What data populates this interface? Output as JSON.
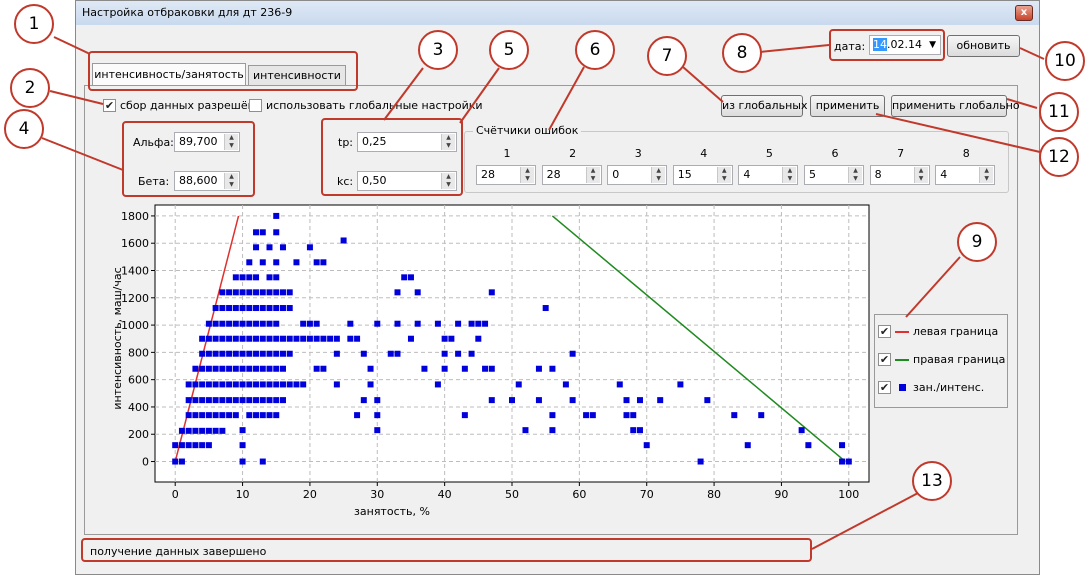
{
  "window": {
    "title": "Настройка отбраковки для дт 236-9",
    "close_glyph": "x"
  },
  "tabs": [
    {
      "label": "интенсивность/занятость",
      "active": true
    },
    {
      "label": "интенсивности",
      "active": false
    }
  ],
  "options": {
    "collect_label": "сбор данных разрешён",
    "collect_checked": true,
    "global_label": "использовать глобальные настройки",
    "global_checked": false
  },
  "params": {
    "alpha_label": "Альфа:",
    "alpha_value": "89,700",
    "beta_label": "Бета:",
    "beta_value": "88,600",
    "tp_label": "tp:",
    "tp_value": "0,25",
    "kc_label": "kc:",
    "kc_value": "0,50"
  },
  "date": {
    "label": "дата:",
    "value_selected": "14",
    "value_rest": ".02.14"
  },
  "buttons": {
    "refresh": "обновить",
    "from_global": "из глобальных",
    "apply": "применить",
    "apply_global": "применить глобально"
  },
  "counters": {
    "title": "Счётчики ошибок",
    "items": [
      {
        "head": "1",
        "value": "28"
      },
      {
        "head": "2",
        "value": "28"
      },
      {
        "head": "3",
        "value": "0"
      },
      {
        "head": "4",
        "value": "15"
      },
      {
        "head": "5",
        "value": "4"
      },
      {
        "head": "6",
        "value": "5"
      },
      {
        "head": "7",
        "value": "8"
      },
      {
        "head": "8",
        "value": "4"
      }
    ]
  },
  "legend": {
    "items": [
      {
        "label": "левая граница",
        "color": "#e03030",
        "checked": true
      },
      {
        "label": "правая граница",
        "color": "#1f8a1f",
        "checked": true
      },
      {
        "label": "зан./интенс.",
        "color": "#0000dd",
        "checked": true
      }
    ]
  },
  "status": "получение данных завершено",
  "annotations": [
    "1",
    "2",
    "3",
    "4",
    "5",
    "6",
    "7",
    "8",
    "9",
    "10",
    "11",
    "12",
    "13"
  ],
  "colors": {
    "annotation": "#c0392b",
    "points": "#0000dd",
    "left_line": "#e03030",
    "right_line": "#1f8a1f"
  },
  "chart_data": {
    "type": "scatter",
    "xlabel": "занятость, %",
    "ylabel": "интенсивность, маш/час",
    "xlim": [
      -3,
      103
    ],
    "ylim": [
      -150,
      1880
    ],
    "grid": true,
    "x_ticks": [
      0,
      10,
      20,
      30,
      40,
      50,
      60,
      70,
      80,
      90,
      100
    ],
    "y_ticks": [
      0,
      200,
      400,
      600,
      800,
      1000,
      1200,
      1400,
      1600,
      1800
    ],
    "series": [
      {
        "name": "левая граница",
        "kind": "line",
        "color": "#e03030",
        "x": [
          0,
          9.4
        ],
        "y": [
          0,
          1800
        ]
      },
      {
        "name": "правая граница",
        "kind": "line",
        "color": "#1f8a1f",
        "x": [
          56,
          99.5
        ],
        "y": [
          1800,
          0
        ]
      },
      {
        "name": "зан./интенс.",
        "kind": "points",
        "color": "#0000dd",
        "points": [
          [
            0,
            0
          ],
          [
            1,
            0
          ],
          [
            0,
            120
          ],
          [
            1,
            120
          ],
          [
            2,
            120
          ],
          [
            3,
            120
          ],
          [
            4,
            120
          ],
          [
            5,
            120
          ],
          [
            1,
            225
          ],
          [
            2,
            225
          ],
          [
            3,
            225
          ],
          [
            4,
            225
          ],
          [
            5,
            225
          ],
          [
            6,
            225
          ],
          [
            7,
            225
          ],
          [
            2,
            340
          ],
          [
            3,
            340
          ],
          [
            4,
            340
          ],
          [
            5,
            340
          ],
          [
            6,
            340
          ],
          [
            7,
            340
          ],
          [
            8,
            340
          ],
          [
            9,
            340
          ],
          [
            2,
            450
          ],
          [
            3,
            450
          ],
          [
            4,
            450
          ],
          [
            5,
            450
          ],
          [
            6,
            450
          ],
          [
            7,
            450
          ],
          [
            8,
            450
          ],
          [
            9,
            450
          ],
          [
            10,
            450
          ],
          [
            2,
            565
          ],
          [
            3,
            565
          ],
          [
            4,
            565
          ],
          [
            5,
            565
          ],
          [
            6,
            565
          ],
          [
            7,
            565
          ],
          [
            8,
            565
          ],
          [
            9,
            565
          ],
          [
            10,
            565
          ],
          [
            3,
            680
          ],
          [
            4,
            680
          ],
          [
            5,
            680
          ],
          [
            6,
            680
          ],
          [
            7,
            680
          ],
          [
            8,
            680
          ],
          [
            9,
            680
          ],
          [
            10,
            680
          ],
          [
            4,
            790
          ],
          [
            5,
            790
          ],
          [
            6,
            790
          ],
          [
            7,
            790
          ],
          [
            8,
            790
          ],
          [
            9,
            790
          ],
          [
            10,
            790
          ],
          [
            4,
            900
          ],
          [
            5,
            900
          ],
          [
            6,
            900
          ],
          [
            7,
            900
          ],
          [
            8,
            900
          ],
          [
            9,
            900
          ],
          [
            10,
            900
          ],
          [
            5,
            1010
          ],
          [
            6,
            1010
          ],
          [
            7,
            1010
          ],
          [
            8,
            1010
          ],
          [
            9,
            1010
          ],
          [
            10,
            1010
          ],
          [
            6,
            1125
          ],
          [
            7,
            1125
          ],
          [
            8,
            1125
          ],
          [
            9,
            1125
          ],
          [
            10,
            1125
          ],
          [
            7,
            1240
          ],
          [
            8,
            1240
          ],
          [
            9,
            1240
          ],
          [
            10,
            1240
          ],
          [
            9,
            1350
          ],
          [
            10,
            1350
          ],
          [
            11,
            340
          ],
          [
            12,
            340
          ],
          [
            13,
            340
          ],
          [
            14,
            340
          ],
          [
            15,
            340
          ],
          [
            11,
            450
          ],
          [
            12,
            450
          ],
          [
            13,
            450
          ],
          [
            14,
            450
          ],
          [
            15,
            450
          ],
          [
            16,
            450
          ],
          [
            11,
            565
          ],
          [
            12,
            565
          ],
          [
            13,
            565
          ],
          [
            14,
            565
          ],
          [
            15,
            565
          ],
          [
            16,
            565
          ],
          [
            17,
            565
          ],
          [
            18,
            565
          ],
          [
            19,
            565
          ],
          [
            11,
            680
          ],
          [
            12,
            680
          ],
          [
            13,
            680
          ],
          [
            14,
            680
          ],
          [
            15,
            680
          ],
          [
            16,
            680
          ],
          [
            11,
            790
          ],
          [
            12,
            790
          ],
          [
            13,
            790
          ],
          [
            14,
            790
          ],
          [
            15,
            790
          ],
          [
            16,
            790
          ],
          [
            17,
            790
          ],
          [
            11,
            900
          ],
          [
            12,
            900
          ],
          [
            13,
            900
          ],
          [
            14,
            900
          ],
          [
            15,
            900
          ],
          [
            16,
            900
          ],
          [
            17,
            900
          ],
          [
            18,
            900
          ],
          [
            19,
            900
          ],
          [
            20,
            900
          ],
          [
            21,
            900
          ],
          [
            22,
            900
          ],
          [
            23,
            900
          ],
          [
            24,
            900
          ],
          [
            11,
            1010
          ],
          [
            12,
            1010
          ],
          [
            13,
            1010
          ],
          [
            14,
            1010
          ],
          [
            15,
            1010
          ],
          [
            19,
            1010
          ],
          [
            20,
            1010
          ],
          [
            21,
            1010
          ],
          [
            11,
            1125
          ],
          [
            12,
            1125
          ],
          [
            13,
            1125
          ],
          [
            14,
            1125
          ],
          [
            15,
            1125
          ],
          [
            16,
            1125
          ],
          [
            17,
            1125
          ],
          [
            11,
            1240
          ],
          [
            12,
            1240
          ],
          [
            13,
            1240
          ],
          [
            14,
            1240
          ],
          [
            15,
            1240
          ],
          [
            16,
            1240
          ],
          [
            17,
            1240
          ],
          [
            11,
            1350
          ],
          [
            12,
            1350
          ],
          [
            14,
            1350
          ],
          [
            15,
            1350
          ],
          [
            11,
            1460
          ],
          [
            13,
            1460
          ],
          [
            15,
            1460
          ],
          [
            18,
            1460
          ],
          [
            21,
            1460
          ],
          [
            22,
            1460
          ],
          [
            12,
            1570
          ],
          [
            14,
            1570
          ],
          [
            16,
            1570
          ],
          [
            20,
            1570
          ],
          [
            25,
            1620
          ],
          [
            12,
            1680
          ],
          [
            13,
            1680
          ],
          [
            15,
            1680
          ],
          [
            15,
            1800
          ],
          [
            10,
            0
          ],
          [
            13,
            0
          ],
          [
            10,
            230
          ],
          [
            10,
            120
          ],
          [
            21,
            680
          ],
          [
            24,
            790
          ],
          [
            24,
            565
          ],
          [
            22,
            680
          ],
          [
            26,
            900
          ],
          [
            27,
            900
          ],
          [
            28,
            790
          ],
          [
            29,
            680
          ],
          [
            29,
            565
          ],
          [
            30,
            450
          ],
          [
            28,
            450
          ],
          [
            27,
            340
          ],
          [
            30,
            340
          ],
          [
            30,
            230
          ],
          [
            26,
            1010
          ],
          [
            30,
            1010
          ],
          [
            33,
            1010
          ],
          [
            36,
            1010
          ],
          [
            39,
            1010
          ],
          [
            42,
            1010
          ],
          [
            44,
            1010
          ],
          [
            45,
            1010
          ],
          [
            46,
            1010
          ],
          [
            32,
            790
          ],
          [
            33,
            790
          ],
          [
            35,
            900
          ],
          [
            37,
            680
          ],
          [
            39,
            565
          ],
          [
            40,
            680
          ],
          [
            40,
            790
          ],
          [
            40,
            900
          ],
          [
            34,
            1350
          ],
          [
            35,
            1350
          ],
          [
            33,
            1240
          ],
          [
            36,
            1240
          ],
          [
            41,
            900
          ],
          [
            42,
            790
          ],
          [
            43,
            680
          ],
          [
            44,
            790
          ],
          [
            45,
            900
          ],
          [
            46,
            680
          ],
          [
            47,
            1240
          ],
          [
            47,
            680
          ],
          [
            43,
            340
          ],
          [
            47,
            450
          ],
          [
            50,
            450
          ],
          [
            51,
            565
          ],
          [
            52,
            230
          ],
          [
            54,
            450
          ],
          [
            54,
            680
          ],
          [
            55,
            1125
          ],
          [
            56,
            230
          ],
          [
            56,
            340
          ],
          [
            56,
            680
          ],
          [
            58,
            565
          ],
          [
            59,
            450
          ],
          [
            59,
            790
          ],
          [
            61,
            340
          ],
          [
            62,
            340
          ],
          [
            66,
            565
          ],
          [
            67,
            450
          ],
          [
            67,
            340
          ],
          [
            68,
            230
          ],
          [
            68,
            340
          ],
          [
            69,
            230
          ],
          [
            69,
            450
          ],
          [
            70,
            120
          ],
          [
            72,
            450
          ],
          [
            75,
            565
          ],
          [
            78,
            0
          ],
          [
            79,
            450
          ],
          [
            83,
            340
          ],
          [
            85,
            120
          ],
          [
            87,
            340
          ],
          [
            93,
            230
          ],
          [
            94,
            120
          ],
          [
            99,
            120
          ],
          [
            99,
            0
          ],
          [
            100,
            0
          ]
        ]
      }
    ]
  }
}
